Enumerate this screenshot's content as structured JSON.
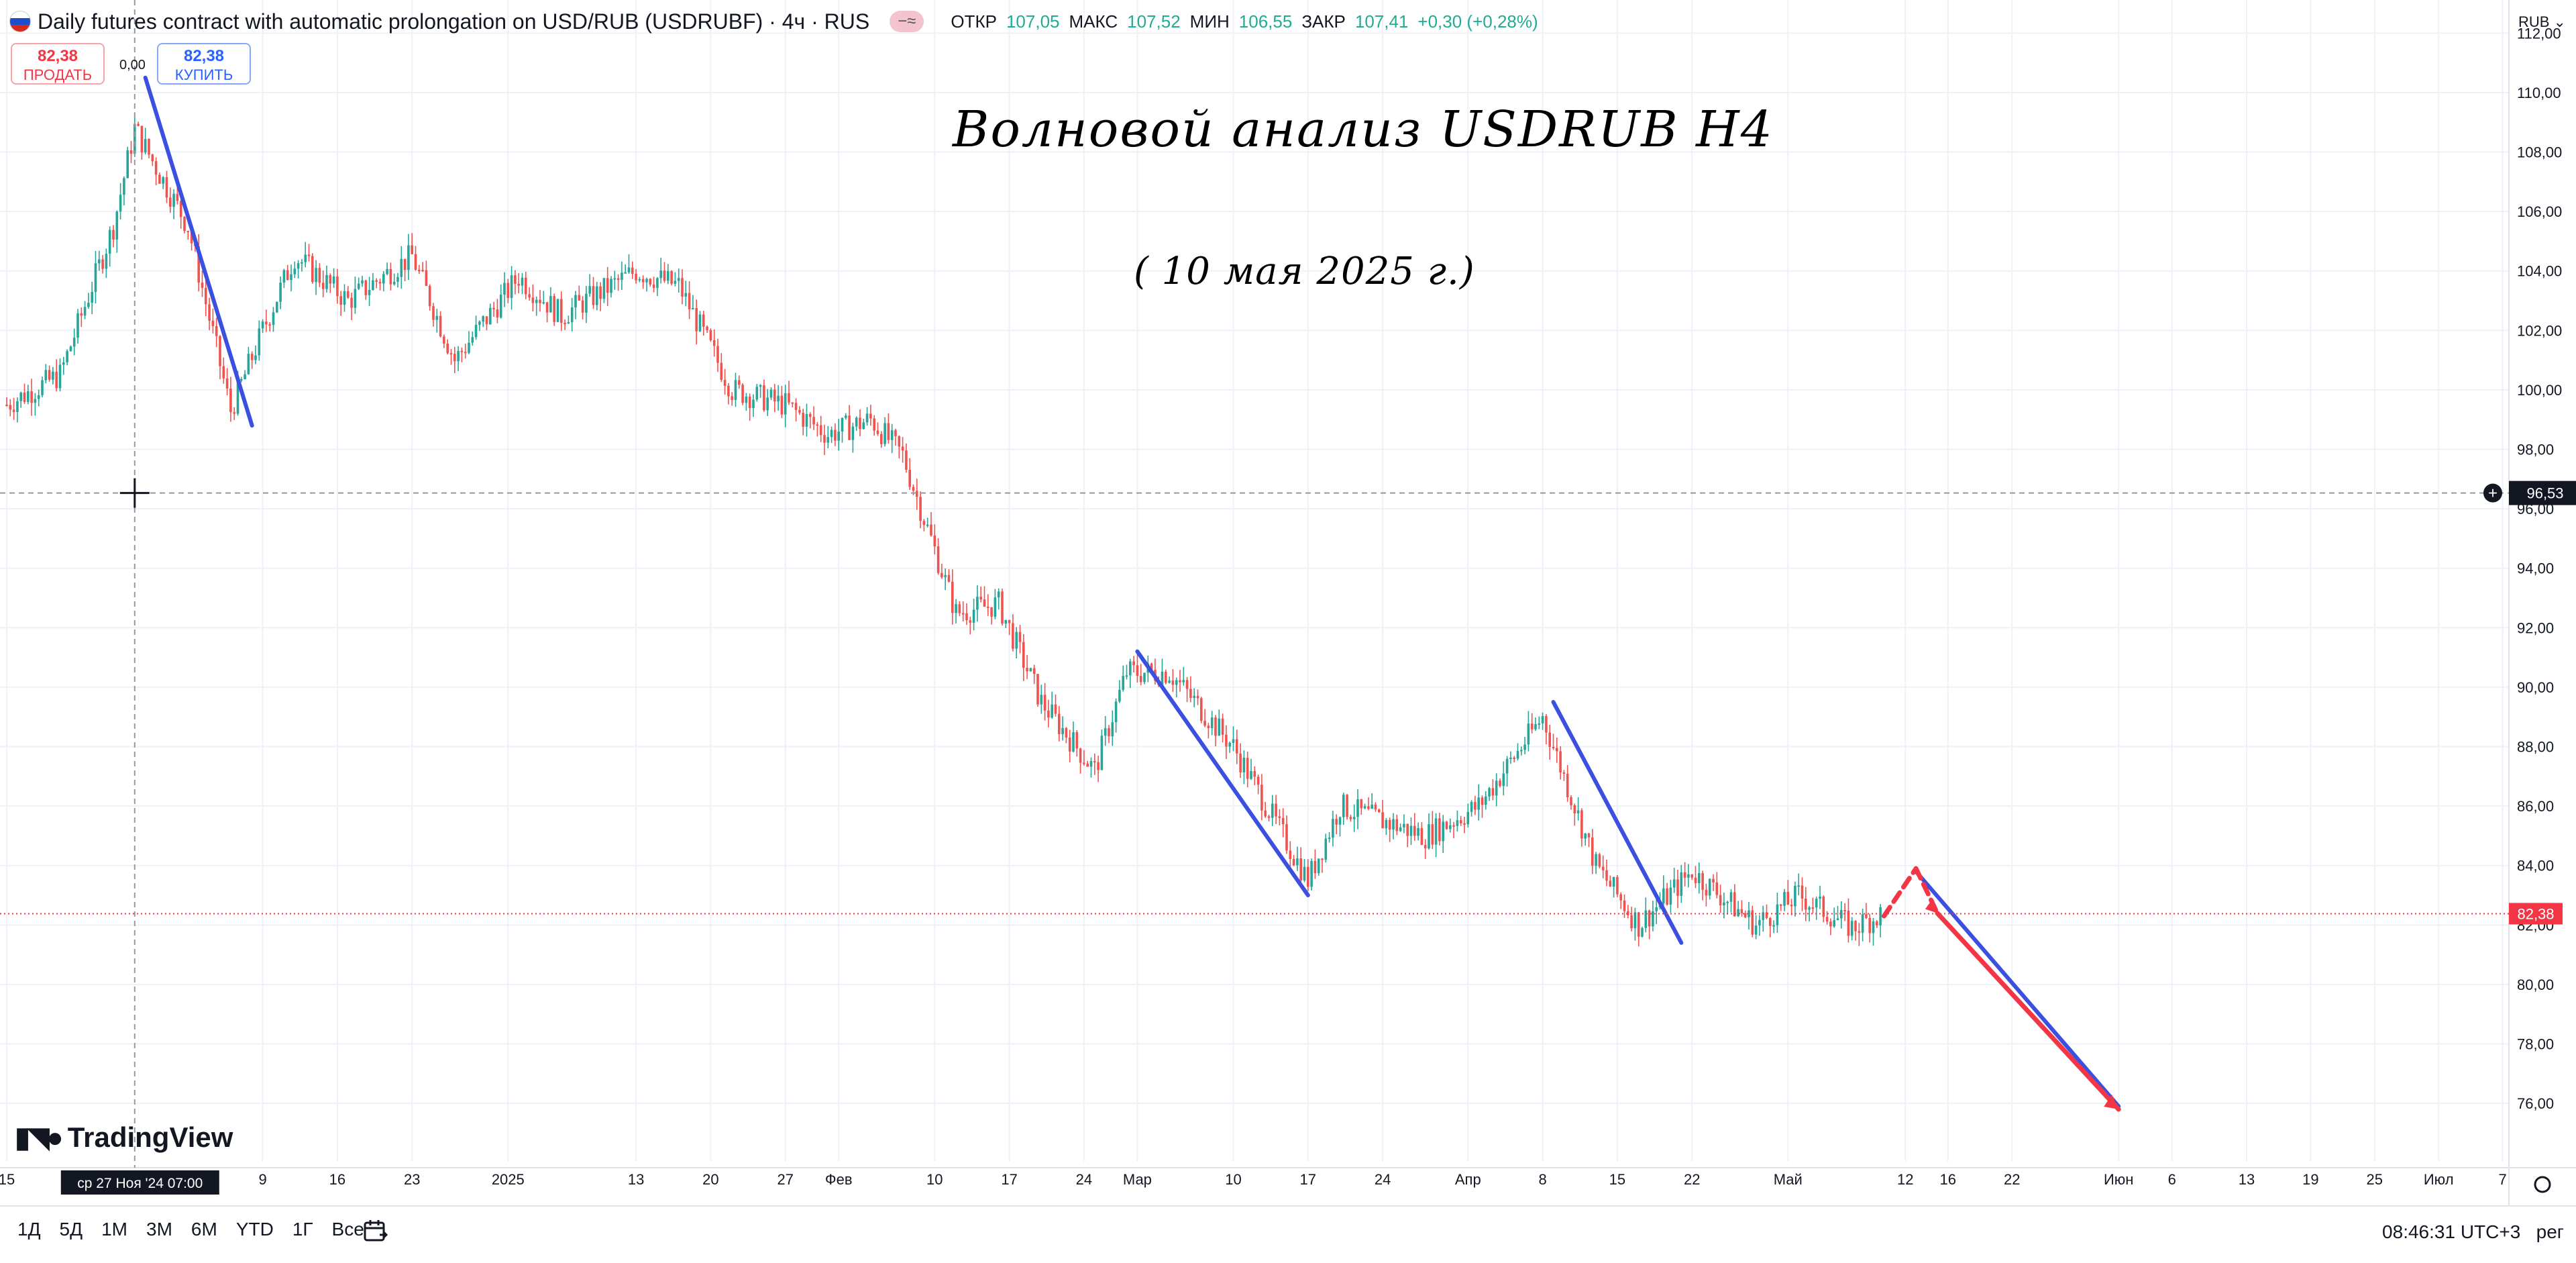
{
  "header": {
    "title": "Daily futures contract with automatic prolongation on USD/RUB (USDRUBF) · 4ч · RUS",
    "indicator_pill": "−≈",
    "ohlc": [
      {
        "label": "ОТКР",
        "value": "107,05"
      },
      {
        "label": "МАКС",
        "value": "107,52"
      },
      {
        "label": "МИН",
        "value": "106,55"
      },
      {
        "label": "ЗАКР",
        "value": "107,41"
      },
      {
        "label": "",
        "value": "+0,30 (+0,28%)"
      }
    ]
  },
  "trade": {
    "sell_price": "82,38",
    "sell_label": "ПРОДАТЬ",
    "buy_price": "82,38",
    "buy_label": "КУПИТЬ",
    "spread": "0,00"
  },
  "annotations": {
    "title": "Волновой анализ USDRUB H4",
    "subtitle": "( 10 мая 2025 г.)"
  },
  "price_axis": {
    "currency": "RUB",
    "crosshair_price": "96,53",
    "last_price": "82,38"
  },
  "time_axis": {
    "crosshair_label": "ср 27 Ноя '24   07:00"
  },
  "bottom_bar": {
    "periods": [
      "1Д",
      "5Д",
      "1М",
      "3М",
      "6М",
      "YTD",
      "1Г",
      "Все"
    ],
    "clock": "08:46:31 UTC+3",
    "mode": "рег"
  },
  "logo": {
    "text": "TradingView"
  },
  "colors": {
    "up": "#26a69a",
    "down": "#ef5350",
    "wave_blue": "#3b50e0",
    "wave_red": "#f23645",
    "grid": "#eef1f7",
    "last_price": "#f23645"
  },
  "chart_data": {
    "type": "candlestick",
    "symbol": "USDRUBF",
    "timeframe": "4ч",
    "ylim": [
      74.4,
      113.5
    ],
    "y_ticks": [
      "76,00",
      "78,00",
      "80,00",
      "82,00",
      "84,00",
      "86,00",
      "88,00",
      "90,00",
      "92,00",
      "94,00",
      "96,00",
      "98,00",
      "100,00",
      "102,00",
      "104,00",
      "106,00",
      "108,00",
      "110,00",
      "112,00"
    ],
    "x_tick_labels": [
      "15",
      "9",
      "16",
      "23",
      "2025",
      "13",
      "20",
      "27",
      "Фев",
      "10",
      "17",
      "24",
      "Мар",
      "10",
      "17",
      "24",
      "Апр",
      "8",
      "15",
      "22",
      "Май",
      "12",
      "16",
      "22",
      "Июн",
      "6",
      "13",
      "19",
      "25",
      "Июл",
      "7"
    ],
    "close_path": [
      {
        "date": "2024-11-15",
        "close": 99.5
      },
      {
        "date": "2024-11-20",
        "close": 100.5
      },
      {
        "date": "2024-11-25",
        "close": 105.5
      },
      {
        "date": "2024-11-27",
        "close": 108.8
      },
      {
        "date": "2024-12-02",
        "close": 105.5
      },
      {
        "date": "2024-12-06",
        "close": 99.3
      },
      {
        "date": "2024-12-09",
        "close": 102.0
      },
      {
        "date": "2024-12-12",
        "close": 104.5
      },
      {
        "date": "2024-12-17",
        "close": 103.0
      },
      {
        "date": "2024-12-23",
        "close": 104.5
      },
      {
        "date": "2024-12-27",
        "close": 101.0
      },
      {
        "date": "2025-01-02",
        "close": 103.8
      },
      {
        "date": "2025-01-06",
        "close": 102.5
      },
      {
        "date": "2025-01-13",
        "close": 104.0
      },
      {
        "date": "2025-01-17",
        "close": 103.5
      },
      {
        "date": "2025-01-22",
        "close": 100.0
      },
      {
        "date": "2025-01-27",
        "close": 99.5
      },
      {
        "date": "2025-01-31",
        "close": 98.5
      },
      {
        "date": "2025-02-04",
        "close": 99.0
      },
      {
        "date": "2025-02-07",
        "close": 97.8
      },
      {
        "date": "2025-02-12",
        "close": 92.5
      },
      {
        "date": "2025-02-16",
        "close": 92.8
      },
      {
        "date": "2025-02-20",
        "close": 89.5
      },
      {
        "date": "2025-02-25",
        "close": 87.2
      },
      {
        "date": "2025-02-28",
        "close": 90.5
      },
      {
        "date": "2025-03-04",
        "close": 90.5
      },
      {
        "date": "2025-03-10",
        "close": 88.0
      },
      {
        "date": "2025-03-17",
        "close": 83.5
      },
      {
        "date": "2025-03-20",
        "close": 86.0
      },
      {
        "date": "2025-03-24",
        "close": 85.5
      },
      {
        "date": "2025-03-28",
        "close": 85.0
      },
      {
        "date": "2025-04-02",
        "close": 86.0
      },
      {
        "date": "2025-04-08",
        "close": 89.0
      },
      {
        "date": "2025-04-13",
        "close": 84.0
      },
      {
        "date": "2025-04-17",
        "close": 82.0
      },
      {
        "date": "2025-04-22",
        "close": 83.8
      },
      {
        "date": "2025-04-28",
        "close": 82.0
      },
      {
        "date": "2025-05-02",
        "close": 83.0
      },
      {
        "date": "2025-05-07",
        "close": 81.9
      },
      {
        "date": "2025-05-10",
        "close": 82.4
      }
    ],
    "wave_lines": [
      {
        "color": "blue",
        "from": {
          "date": "2024-11-28",
          "price": 110.5
        },
        "to": {
          "date": "2024-12-08",
          "price": 98.8
        }
      },
      {
        "color": "blue",
        "from": {
          "date": "2025-03-01",
          "price": 91.2
        },
        "to": {
          "date": "2025-03-17",
          "price": 83.0
        }
      },
      {
        "color": "blue",
        "from": {
          "date": "2025-04-09",
          "price": 89.5
        },
        "to": {
          "date": "2025-04-21",
          "price": 81.4
        }
      },
      {
        "color": "blue",
        "from": {
          "date": "2025-05-13",
          "price": 83.8
        },
        "to": {
          "date": "2025-06-01",
          "price": 75.9
        }
      }
    ],
    "forecast": [
      {
        "style": "dashed",
        "from": {
          "date": "2025-05-10",
          "price": 82.3
        },
        "to": {
          "date": "2025-05-13",
          "price": 83.9
        }
      },
      {
        "style": "dashed",
        "from": {
          "date": "2025-05-13",
          "price": 83.9
        },
        "to": {
          "date": "2025-05-15",
          "price": 82.4
        }
      },
      {
        "style": "solid",
        "from": {
          "date": "2025-05-15",
          "price": 82.4
        },
        "to": {
          "date": "2025-06-01",
          "price": 75.8
        }
      }
    ]
  }
}
